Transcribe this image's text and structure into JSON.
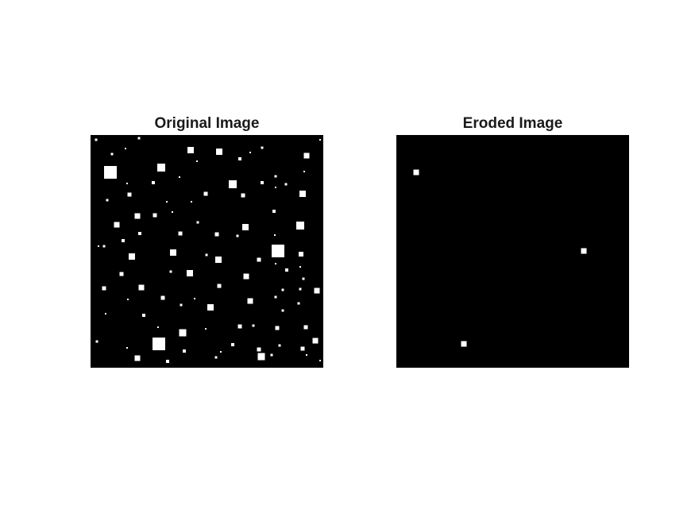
{
  "figure": {
    "background_color": "#ffffff",
    "panels": [
      {
        "title": "Original Image",
        "image": {
          "content": "black background with many scattered white squares of varying sizes",
          "background_color": "#000000",
          "foreground_color": "#ffffff"
        }
      },
      {
        "title": "Eroded Image",
        "image": {
          "content": "black background with three small remaining white squares",
          "background_color": "#000000",
          "foreground_color": "#ffffff"
        }
      }
    ]
  }
}
